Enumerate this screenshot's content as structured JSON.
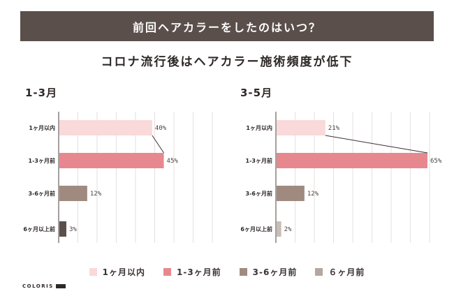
{
  "header": {
    "title": "前回ヘアカラーをしたのはいつ？"
  },
  "subtitle": "コロナ流行後はヘアカラー施術頻度が低下",
  "brand": "COLORIS",
  "colors": {
    "within_1m": "#f9d9d9",
    "m1_3": "#e7888f",
    "m3_6": "#a08a80",
    "m6_plus": "#5b4f4b",
    "legend_6_plus": "#b3a79f",
    "grid": "#e6e0de",
    "axis": "#4a4240",
    "header_bg": "#5a4f4b"
  },
  "legend": [
    {
      "label": "1ヶ月以内",
      "color": "#f9d9d9"
    },
    {
      "label": "1-3ヶ月前",
      "color": "#e7888f"
    },
    {
      "label": "3-6ヶ月前",
      "color": "#a08a80"
    },
    {
      "label": "６ヶ月前",
      "color": "#b3a79f"
    }
  ],
  "chart_data": [
    {
      "type": "bar",
      "orientation": "horizontal",
      "title": "1-3月",
      "categories": [
        "1ヶ月以内",
        "1-3ヶ月前",
        "3-6ヶ月前",
        "6ヶ月以上前"
      ],
      "values": [
        40,
        45,
        12,
        3
      ],
      "value_labels": [
        "40%",
        "45%",
        "12%",
        "3%"
      ],
      "bar_colors": [
        "#f9d9d9",
        "#e7888f",
        "#a08a80",
        "#5b4f4b"
      ],
      "xlim": [
        0,
        65
      ],
      "grid": true
    },
    {
      "type": "bar",
      "orientation": "horizontal",
      "title": "3-5月",
      "categories": [
        "1ヶ月以内",
        "1-3ヶ月前",
        "3-6ヶ月前",
        "6ヶ月以上前"
      ],
      "values": [
        21,
        65,
        12,
        2
      ],
      "value_labels": [
        "21%",
        "65%",
        "12%",
        "2%"
      ],
      "bar_colors": [
        "#f9d9d9",
        "#e7888f",
        "#a08a80",
        "#c9bdb6"
      ],
      "xlim": [
        0,
        65
      ],
      "grid": true
    }
  ]
}
